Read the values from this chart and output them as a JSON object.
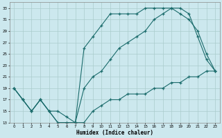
{
  "xlabel": "Humidex (Indice chaleur)",
  "bg_color": "#cce8ee",
  "grid_color": "#aacccc",
  "line_color": "#1a6b6b",
  "xlim": [
    -0.5,
    23.5
  ],
  "ylim": [
    13,
    34
  ],
  "xticks": [
    0,
    1,
    2,
    3,
    4,
    5,
    6,
    7,
    8,
    9,
    10,
    11,
    12,
    13,
    14,
    15,
    16,
    17,
    18,
    19,
    20,
    21,
    22,
    23
  ],
  "yticks": [
    13,
    15,
    17,
    19,
    21,
    23,
    25,
    27,
    29,
    31,
    33
  ],
  "line1_x": [
    0,
    1,
    2,
    3,
    4,
    5,
    6,
    7,
    8,
    9,
    10,
    11,
    12,
    13,
    14,
    15,
    16,
    17,
    18,
    19,
    20,
    21,
    22,
    23
  ],
  "line1_y": [
    19,
    17,
    15,
    17,
    15,
    13,
    13,
    13,
    19,
    21,
    22,
    24,
    26,
    27,
    28,
    29,
    31,
    32,
    33,
    33,
    32,
    28,
    24,
    22
  ],
  "line2_x": [
    0,
    1,
    2,
    3,
    4,
    5,
    6,
    7,
    8,
    9,
    10,
    11,
    12,
    13,
    14,
    15,
    16,
    17,
    18,
    19,
    20,
    21,
    22,
    23
  ],
  "line2_y": [
    19,
    17,
    15,
    17,
    15,
    13,
    13,
    13,
    26,
    28,
    30,
    32,
    32,
    32,
    32,
    33,
    33,
    33,
    33,
    32,
    31,
    29,
    25,
    22
  ],
  "line3_x": [
    0,
    1,
    2,
    3,
    4,
    5,
    6,
    7,
    8,
    9,
    10,
    11,
    12,
    13,
    14,
    15,
    16,
    17,
    18,
    19,
    20,
    21,
    22,
    23
  ],
  "line3_y": [
    19,
    17,
    15,
    17,
    15,
    15,
    14,
    13,
    13,
    15,
    16,
    17,
    17,
    18,
    18,
    18,
    19,
    19,
    20,
    20,
    21,
    21,
    22,
    22
  ]
}
